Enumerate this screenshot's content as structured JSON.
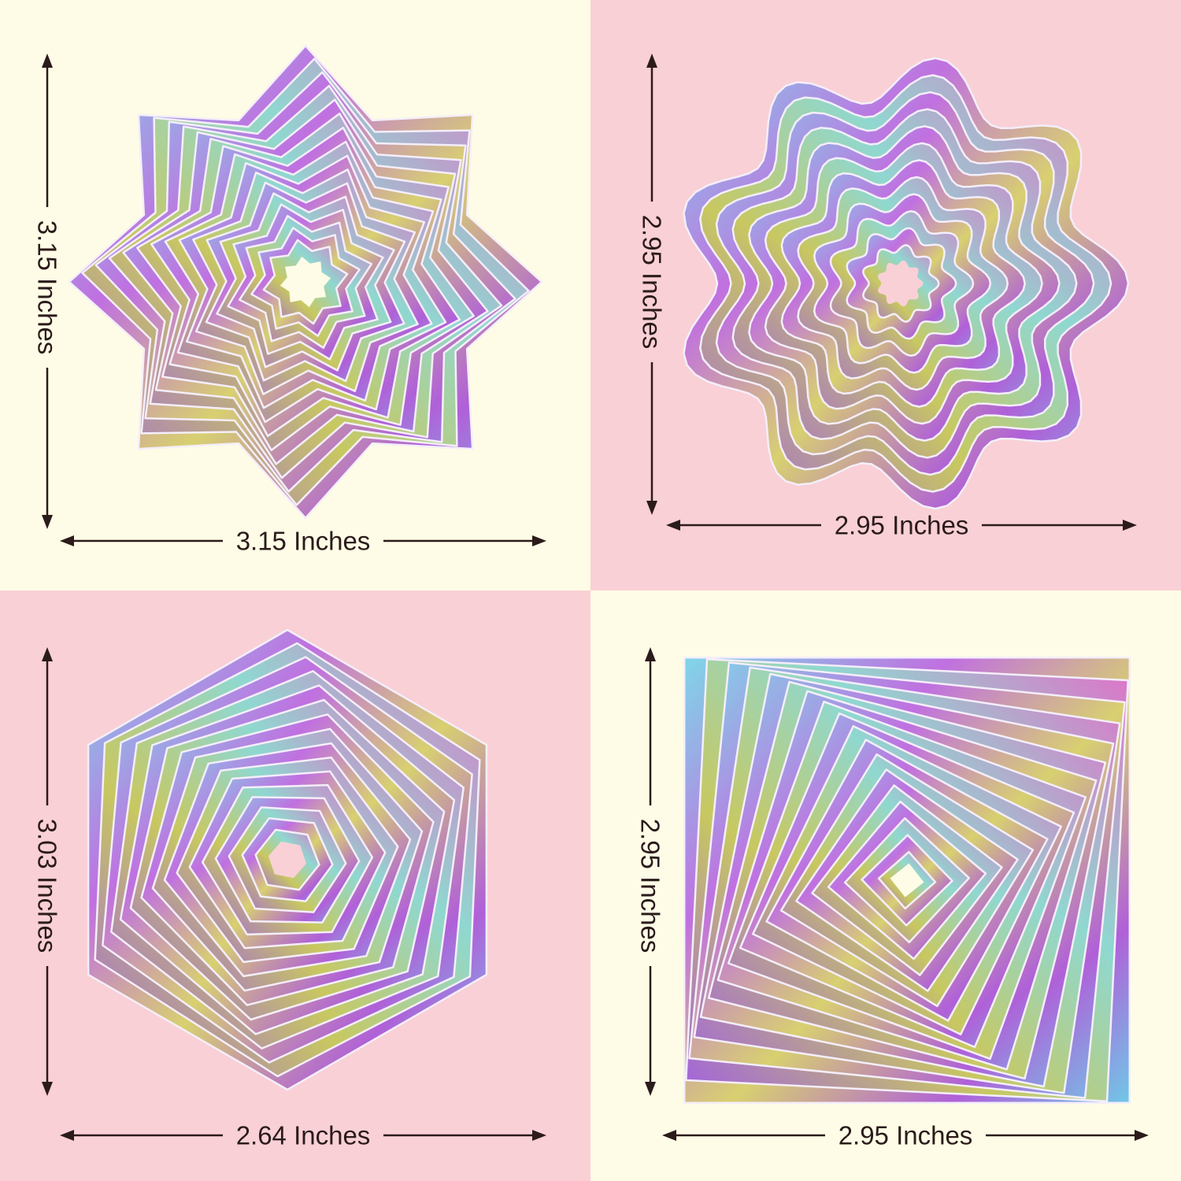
{
  "colors": {
    "cream": "#fefce6",
    "pink": "#f9d0d6",
    "ink": "#2b1b1b"
  },
  "panels": [
    {
      "shape": "eight-point-star",
      "height_label": "3.15 Inches",
      "width_label": "3.15 Inches"
    },
    {
      "shape": "scalloped-flower",
      "height_label": "2.95 Inches",
      "width_label": "2.95 Inches"
    },
    {
      "shape": "hexagon",
      "height_label": "3.03 Inches",
      "width_label": "2.64 Inches"
    },
    {
      "shape": "square",
      "height_label": "2.95 Inches",
      "width_label": "2.95 Inches"
    }
  ]
}
